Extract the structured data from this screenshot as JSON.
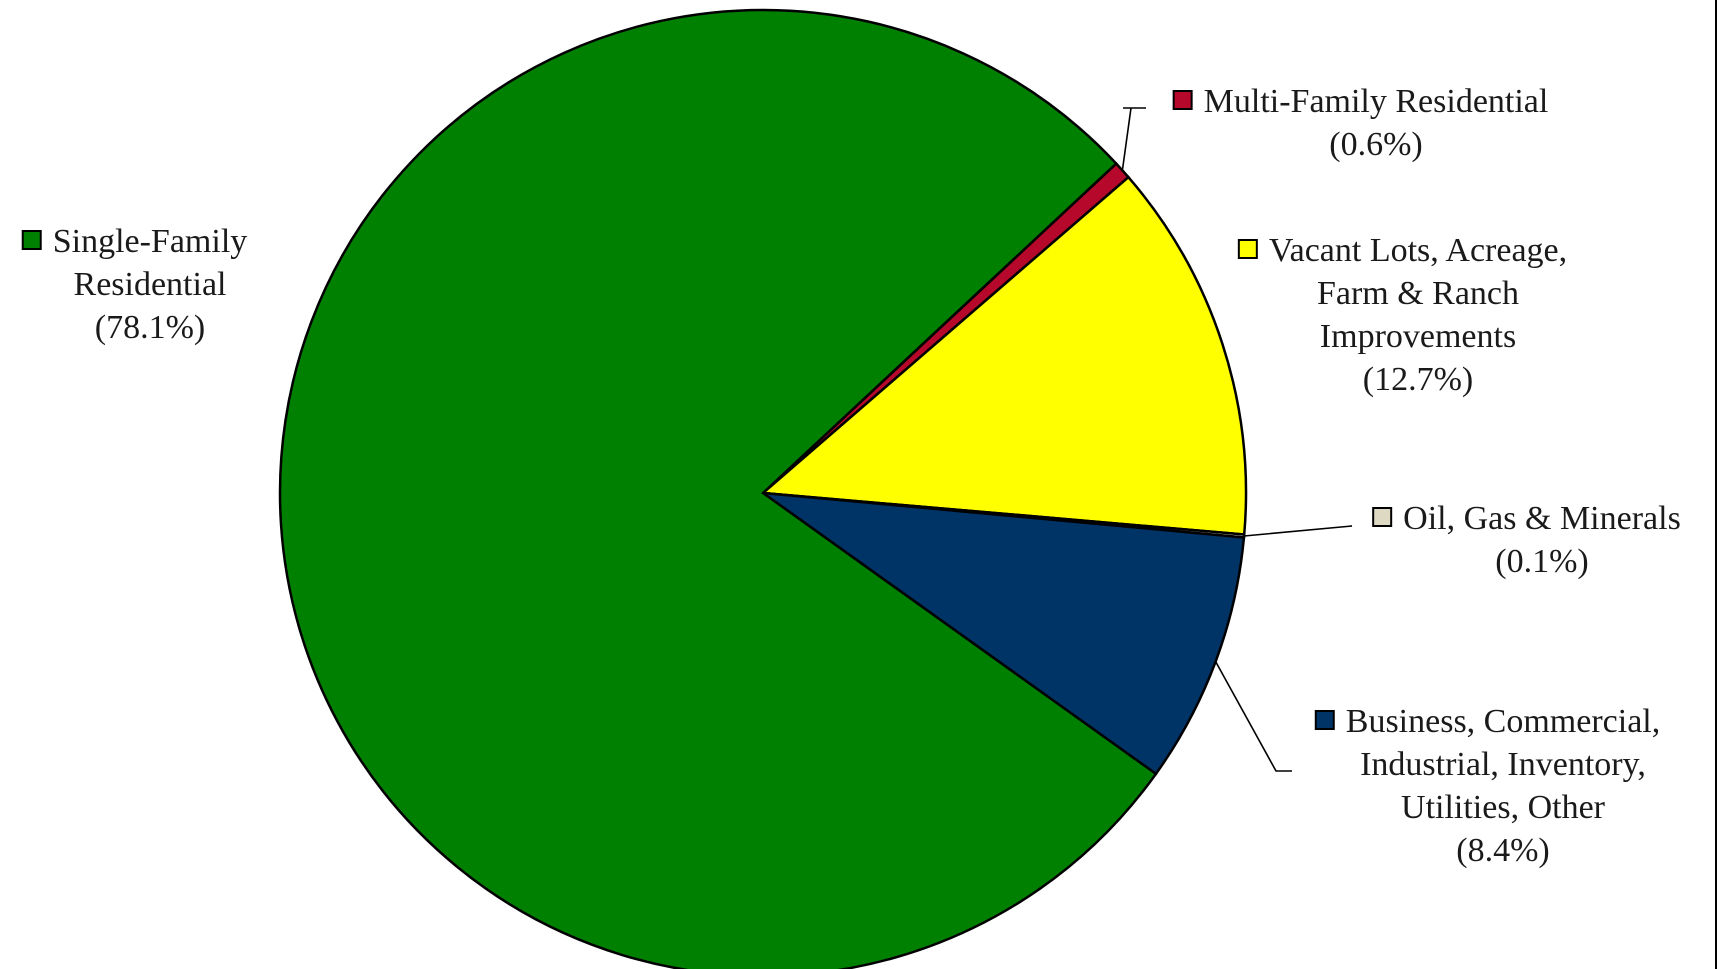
{
  "chart_data": {
    "type": "pie",
    "start_angle_deg": -43,
    "direction": "clockwise",
    "slices": [
      {
        "label": [
          "Multi-Family Residential"
        ],
        "value_text": "(0.6%)",
        "value": 0.6,
        "color": "#b5082b"
      },
      {
        "label": [
          "Vacant Lots, Acreage,",
          "Farm & Ranch",
          "Improvements"
        ],
        "value_text": "(12.7%)",
        "value": 12.7,
        "color": "#ffff00"
      },
      {
        "label": [
          "Oil, Gas & Minerals"
        ],
        "value_text": "(0.1%)",
        "value": 0.1,
        "color": "#ddd9c3"
      },
      {
        "label": [
          "Business, Commercial,",
          "Industrial, Inventory,",
          "Utilities, Other"
        ],
        "value_text": "(8.4%)",
        "value": 8.4,
        "color": "#003366"
      },
      {
        "label": [
          "Single-Family",
          "Residential"
        ],
        "value_text": "(78.1%)",
        "value": 78.1,
        "color": "#008000"
      }
    ],
    "legend": "labels-outside-with-leader-lines"
  }
}
